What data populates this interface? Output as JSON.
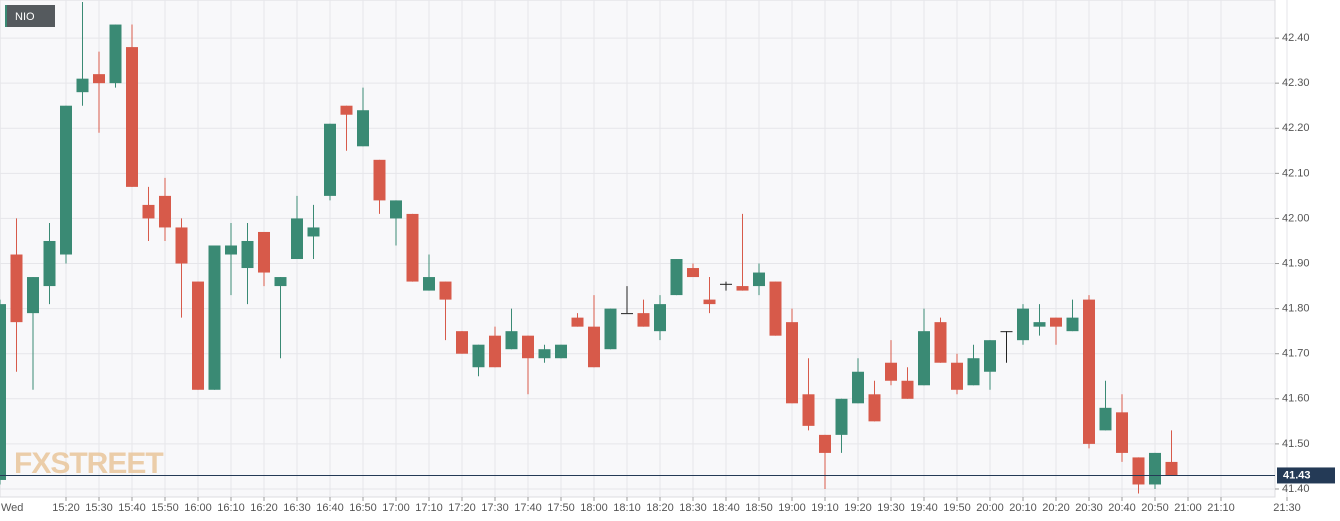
{
  "chart_data": {
    "type": "candlestick",
    "symbol": "NIO",
    "watermark": "FXSTREET",
    "day_label": "Wed",
    "x": [
      "15:00",
      "15:05",
      "15:10",
      "15:15",
      "15:20",
      "15:25",
      "15:30",
      "15:35",
      "15:40",
      "15:45",
      "15:50",
      "15:55",
      "16:00",
      "16:05",
      "16:10",
      "16:15",
      "16:20",
      "16:25",
      "16:30",
      "16:35",
      "16:40",
      "16:45",
      "16:50",
      "16:55",
      "17:00",
      "17:05",
      "17:10",
      "17:15",
      "17:20",
      "17:25",
      "17:30",
      "17:35",
      "17:40",
      "17:45",
      "17:50",
      "17:55",
      "18:00",
      "18:05",
      "18:10",
      "18:15",
      "18:20",
      "18:25",
      "18:30",
      "18:35",
      "18:40",
      "18:45",
      "18:50",
      "18:55",
      "19:00",
      "19:05",
      "19:10",
      "19:15",
      "19:20",
      "19:25",
      "19:30",
      "19:35",
      "19:40",
      "19:45",
      "19:50",
      "19:55",
      "20:00",
      "20:05",
      "20:10",
      "20:15",
      "20:20",
      "20:25",
      "20:30",
      "20:35",
      "20:40",
      "20:45",
      "20:50",
      "20:55"
    ],
    "open": [
      41.42,
      41.92,
      41.79,
      41.85,
      41.92,
      42.28,
      42.32,
      42.3,
      42.38,
      42.03,
      42.05,
      41.98,
      41.86,
      41.62,
      41.92,
      41.89,
      41.97,
      41.85,
      41.91,
      41.96,
      42.05,
      42.25,
      42.16,
      42.13,
      42.0,
      42.01,
      41.84,
      41.86,
      41.75,
      41.67,
      41.74,
      41.71,
      41.74,
      41.69,
      41.69,
      41.78,
      41.76,
      41.71,
      41.79,
      41.79,
      41.75,
      41.83,
      41.89,
      41.82,
      41.855,
      41.85,
      41.85,
      41.86,
      41.77,
      41.61,
      41.52,
      41.52,
      41.59,
      41.61,
      41.68,
      41.64,
      41.63,
      41.77,
      41.68,
      41.63,
      41.66,
      41.75,
      41.73,
      41.76,
      41.78,
      41.75,
      41.82,
      41.53,
      41.57,
      41.47,
      41.41,
      41.46
    ],
    "high": [
      41.82,
      42.0,
      41.87,
      41.99,
      42.25,
      42.48,
      42.37,
      42.43,
      42.43,
      42.07,
      42.09,
      42.0,
      41.86,
      41.94,
      41.99,
      41.99,
      41.97,
      41.87,
      42.05,
      42.03,
      42.21,
      42.25,
      42.29,
      42.13,
      42.04,
      42.01,
      41.92,
      41.86,
      41.75,
      41.72,
      41.76,
      41.8,
      41.74,
      41.72,
      41.72,
      41.79,
      41.83,
      41.8,
      41.85,
      41.82,
      41.83,
      41.91,
      41.9,
      41.87,
      41.86,
      42.01,
      41.9,
      41.86,
      41.8,
      41.69,
      41.52,
      41.6,
      41.69,
      41.64,
      41.73,
      41.67,
      41.8,
      41.78,
      41.7,
      41.72,
      41.73,
      41.75,
      41.81,
      41.81,
      41.78,
      41.82,
      41.83,
      41.64,
      41.61,
      41.47,
      41.48,
      41.53
    ],
    "low": [
      41.41,
      41.66,
      41.62,
      41.81,
      41.9,
      42.25,
      42.19,
      42.29,
      42.07,
      41.95,
      41.95,
      41.78,
      41.62,
      41.62,
      41.83,
      41.81,
      41.85,
      41.69,
      41.91,
      41.91,
      42.04,
      42.15,
      42.16,
      42.01,
      41.94,
      41.86,
      41.84,
      41.73,
      41.7,
      41.65,
      41.67,
      41.71,
      41.61,
      41.68,
      41.69,
      41.76,
      41.67,
      41.71,
      41.79,
      41.76,
      41.73,
      41.83,
      41.87,
      41.79,
      41.84,
      41.84,
      41.83,
      41.74,
      41.59,
      41.53,
      41.4,
      41.48,
      41.59,
      41.55,
      41.63,
      41.6,
      41.63,
      41.68,
      41.61,
      41.63,
      41.62,
      41.68,
      41.72,
      41.74,
      41.72,
      41.75,
      41.49,
      41.53,
      41.46,
      41.39,
      41.4,
      41.43
    ],
    "close": [
      41.81,
      41.77,
      41.87,
      41.95,
      42.25,
      42.31,
      42.3,
      42.43,
      42.07,
      42.0,
      41.98,
      41.9,
      41.62,
      41.94,
      41.94,
      41.95,
      41.88,
      41.87,
      42.0,
      41.98,
      42.21,
      42.23,
      42.24,
      42.04,
      42.04,
      41.86,
      41.87,
      41.82,
      41.7,
      41.72,
      41.67,
      41.75,
      41.69,
      41.71,
      41.72,
      41.76,
      41.67,
      41.8,
      41.79,
      41.76,
      41.81,
      41.91,
      41.87,
      41.81,
      41.855,
      41.84,
      41.88,
      41.74,
      41.59,
      41.54,
      41.48,
      41.6,
      41.66,
      41.55,
      41.64,
      41.6,
      41.75,
      41.68,
      41.62,
      41.69,
      41.73,
      41.75,
      41.8,
      41.77,
      41.76,
      41.78,
      41.5,
      41.58,
      41.48,
      41.41,
      41.48,
      41.43
    ],
    "up_color": "#3a8a74",
    "down_color": "#d75a4a",
    "ylim": [
      41.38,
      42.48
    ],
    "yticks": [
      {
        "value": 41.4,
        "label": "41.40"
      },
      {
        "value": 41.5,
        "label": "41.50"
      },
      {
        "value": 41.6,
        "label": "41.60"
      },
      {
        "value": 41.7,
        "label": "41.70"
      },
      {
        "value": 41.8,
        "label": "41.80"
      },
      {
        "value": 41.9,
        "label": "41.90"
      },
      {
        "value": 42.0,
        "label": "42.00"
      },
      {
        "value": 42.1,
        "label": "42.10"
      },
      {
        "value": 42.2,
        "label": "42.20"
      },
      {
        "value": 42.3,
        "label": "42.30"
      },
      {
        "value": 42.4,
        "label": "42.40"
      }
    ],
    "xticks": [
      "15:20",
      "15:30",
      "15:40",
      "15:50",
      "16:00",
      "16:10",
      "16:20",
      "16:30",
      "16:40",
      "16:50",
      "17:00",
      "17:10",
      "17:20",
      "17:30",
      "17:40",
      "17:50",
      "18:00",
      "18:10",
      "18:20",
      "18:30",
      "18:40",
      "18:50",
      "19:00",
      "19:10",
      "19:20",
      "19:30",
      "19:40",
      "19:50",
      "20:00",
      "20:10",
      "20:20",
      "20:30",
      "20:40",
      "20:50",
      "21:00",
      "21:10",
      "21:30"
    ],
    "last_price": 41.43,
    "grid": true
  }
}
